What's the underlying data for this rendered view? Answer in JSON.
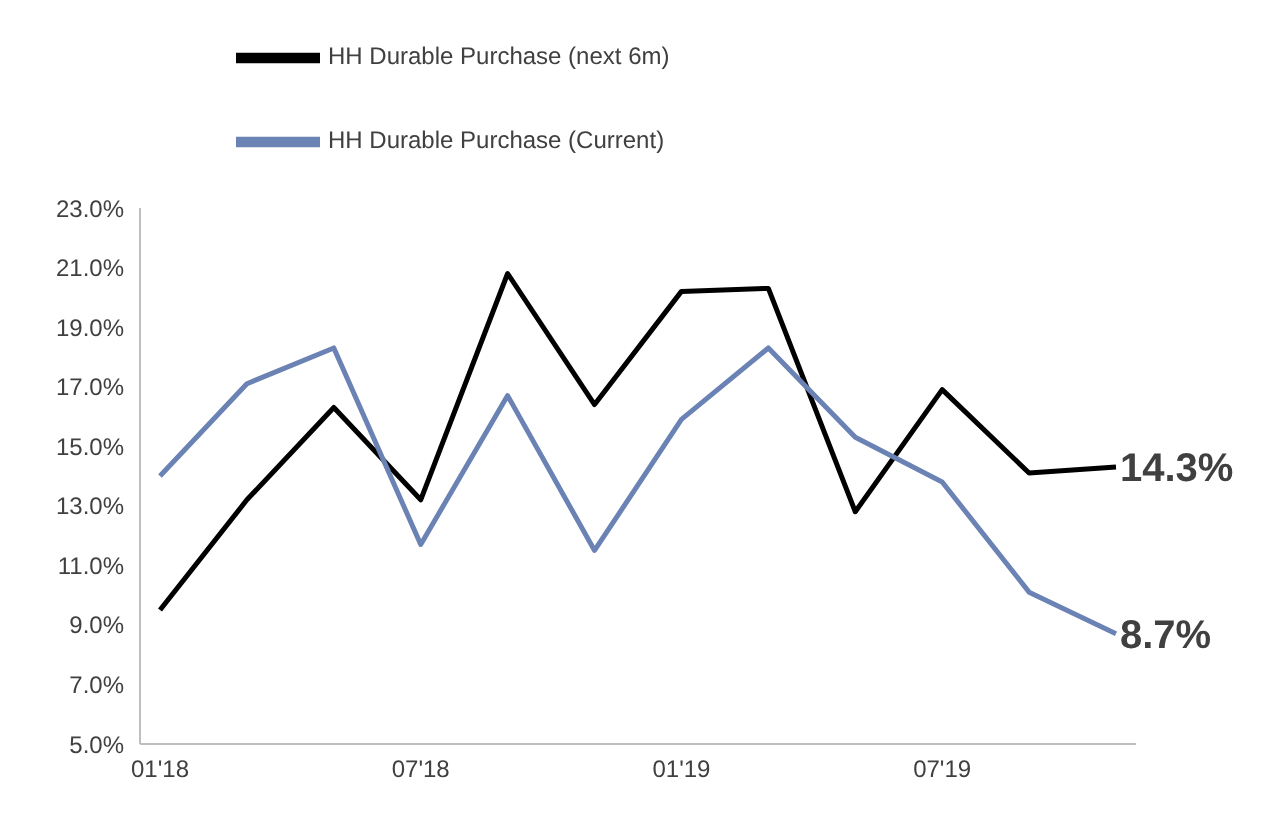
{
  "chart_data": {
    "type": "line",
    "categories": [
      "01'18",
      null,
      null,
      "07'18",
      null,
      null,
      "01'19",
      null,
      null,
      "07'19",
      null,
      null
    ],
    "series": [
      {
        "name": "HH Durable Purchase (next 6m)",
        "color": "#000000",
        "values": [
          9.5,
          13.2,
          16.3,
          13.2,
          20.8,
          16.4,
          20.2,
          20.3,
          12.8,
          16.9,
          14.1,
          14.3
        ],
        "value_labels": [
          null,
          null,
          null,
          null,
          null,
          null,
          null,
          null,
          null,
          null,
          null,
          "14.3%"
        ]
      },
      {
        "name": "HH Durable Purchase (Current)",
        "color": "#6a82b4",
        "values": [
          14.0,
          17.1,
          18.3,
          11.7,
          16.7,
          11.5,
          15.9,
          18.3,
          15.3,
          13.8,
          10.1,
          8.7
        ],
        "value_labels": [
          null,
          null,
          null,
          null,
          null,
          null,
          null,
          null,
          null,
          null,
          null,
          "8.7%"
        ]
      }
    ],
    "ylim": [
      5,
      23
    ],
    "yticks": [
      {
        "value": 5,
        "label": "5.0%"
      },
      {
        "value": 7,
        "label": "7.0%"
      },
      {
        "value": 9,
        "label": "9.0%"
      },
      {
        "value": 11,
        "label": "11.0%"
      },
      {
        "value": 13,
        "label": "13.0%"
      },
      {
        "value": 15,
        "label": "15.0%"
      },
      {
        "value": 17,
        "label": "17.0%"
      },
      {
        "value": 19,
        "label": "19.0%"
      },
      {
        "value": 21,
        "label": "21.0%"
      },
      {
        "value": 23,
        "label": "23.0%"
      }
    ],
    "grid": false,
    "legend": "top left",
    "marker": "none",
    "line_style": "solid"
  }
}
